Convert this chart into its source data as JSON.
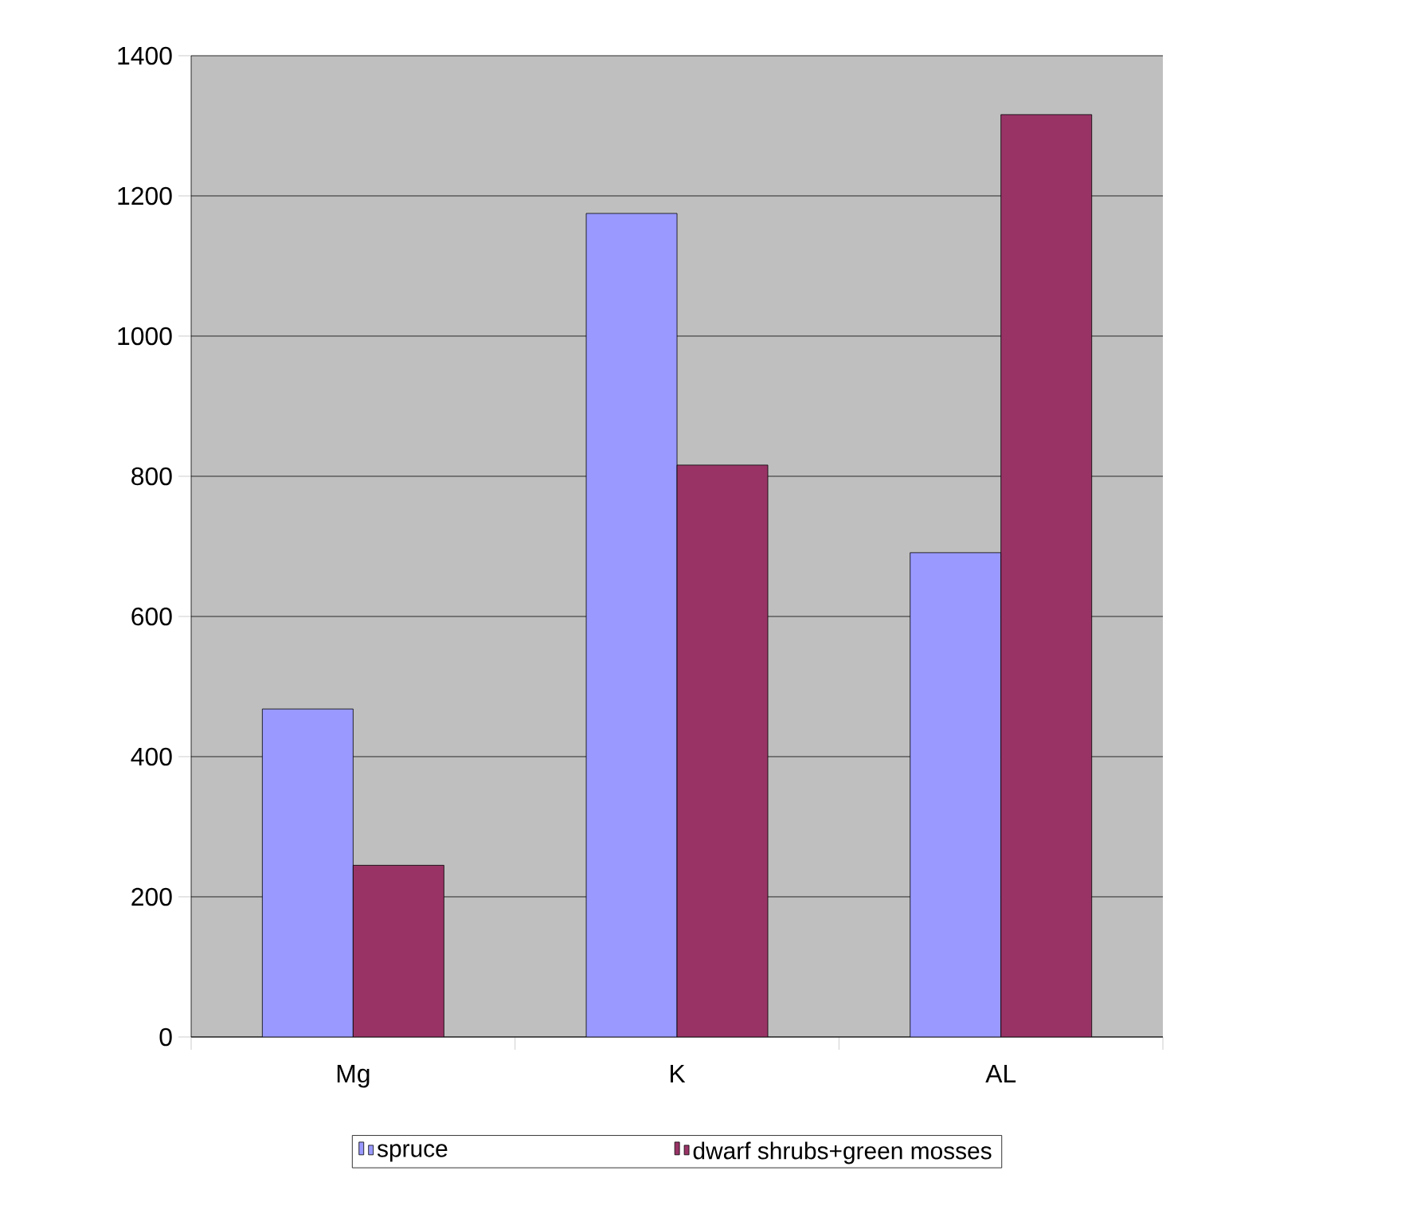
{
  "chart_data": {
    "type": "bar",
    "categories": [
      "Mg",
      "K",
      "AL"
    ],
    "series": [
      {
        "name": "spruce",
        "color": "#9999ff",
        "values": [
          468,
          1175,
          691
        ]
      },
      {
        "name": "dwarf shrubs+green mosses",
        "color": "#993366",
        "values": [
          245,
          816,
          1316
        ]
      }
    ],
    "ylim": [
      0,
      1400
    ],
    "yticks": [
      0,
      200,
      400,
      600,
      800,
      1000,
      1200,
      1400
    ],
    "grid": "y",
    "legend": "bottom"
  }
}
